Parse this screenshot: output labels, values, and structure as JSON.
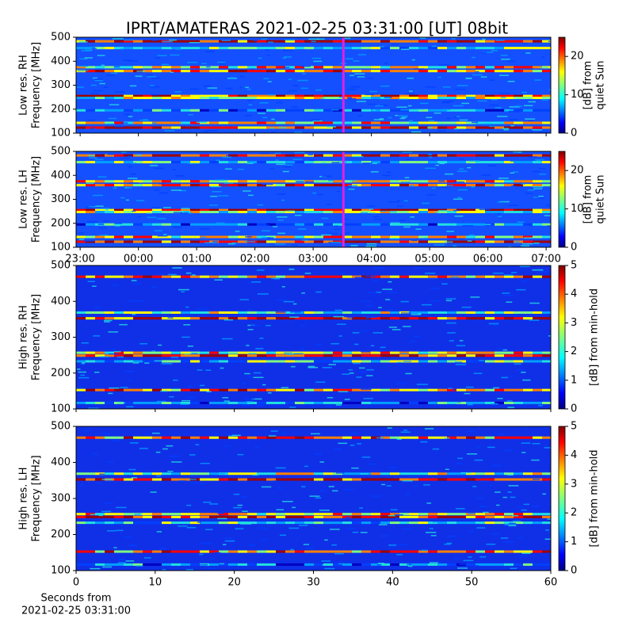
{
  "title": "IPRT/AMATERAS 2021-02-25 03:31:00 [UT]   08bit",
  "chart_data": [
    {
      "type": "heatmap",
      "ylabel": [
        "Low res. RH",
        "Frequency [MHz]"
      ],
      "ylim": [
        100,
        500
      ],
      "yticks": [
        100,
        200,
        300,
        400,
        500
      ],
      "colorbar_label": [
        "[dB] from",
        "quiet Sun"
      ],
      "clim": [
        0,
        25
      ],
      "cticks": [
        0,
        10,
        20
      ],
      "marker": 3.52,
      "marker_color": "#e020e0"
    },
    {
      "type": "heatmap",
      "ylabel": [
        "Low res. LH",
        "Frequency [MHz]"
      ],
      "ylim": [
        100,
        500
      ],
      "yticks": [
        100,
        200,
        300,
        400,
        500
      ],
      "colorbar_label": [
        "[dB] from",
        "quiet Sun"
      ],
      "clim": [
        0,
        25
      ],
      "cticks": [
        0,
        10,
        20
      ],
      "marker": 3.52,
      "marker_color": "#e020e0",
      "xlim": [
        -1.07,
        7.08
      ],
      "xticks": [
        {
          "value": -1,
          "label": "23:00"
        },
        {
          "value": 0,
          "label": "00:00"
        },
        {
          "value": 1,
          "label": "01:00"
        },
        {
          "value": 2,
          "label": "02:00"
        },
        {
          "value": 3,
          "label": "03:00"
        },
        {
          "value": 4,
          "label": "04:00"
        },
        {
          "value": 5,
          "label": "05:00"
        },
        {
          "value": 6,
          "label": "06:00"
        },
        {
          "value": 7,
          "label": "07:00"
        }
      ]
    },
    {
      "type": "heatmap",
      "ylabel": [
        "High res. RH",
        "Frequency [MHz]"
      ],
      "ylim": [
        100,
        500
      ],
      "yticks": [
        100,
        200,
        300,
        400,
        500
      ],
      "colorbar_label": [
        "[dB] from min-hold"
      ],
      "clim": [
        0,
        5
      ],
      "cticks": [
        0,
        1,
        2,
        3,
        4,
        5
      ]
    },
    {
      "type": "heatmap",
      "ylabel": [
        "High res. LH",
        "Frequency [MHz]"
      ],
      "ylim": [
        100,
        500
      ],
      "yticks": [
        100,
        200,
        300,
        400,
        500
      ],
      "colorbar_label": [
        "[dB] from min-hold"
      ],
      "clim": [
        0,
        5
      ],
      "cticks": [
        0,
        1,
        2,
        3,
        4,
        5
      ],
      "xlim": [
        0,
        60
      ],
      "xticks": [
        0,
        10,
        20,
        30,
        40,
        50,
        60
      ],
      "xlabel": [
        "Seconds from",
        "2021-02-25 03:31:00"
      ]
    }
  ]
}
